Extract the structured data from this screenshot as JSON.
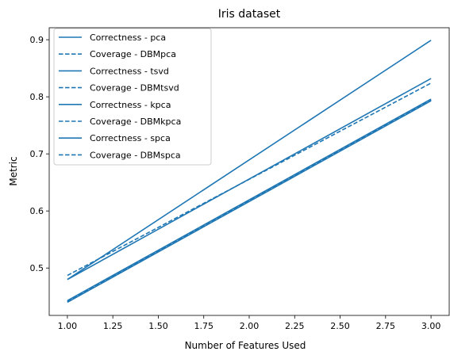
{
  "chart_data": {
    "type": "line",
    "title": "Iris dataset",
    "xlabel": "Number of Features Used",
    "ylabel": "Metric",
    "xlim": [
      0.9,
      3.1
    ],
    "ylim": [
      0.417,
      0.921
    ],
    "xticks": [
      1.0,
      1.25,
      1.5,
      1.75,
      2.0,
      2.25,
      2.5,
      2.75,
      3.0
    ],
    "xtick_labels": [
      "1.00",
      "1.25",
      "1.50",
      "1.75",
      "2.00",
      "2.25",
      "2.50",
      "2.75",
      "3.00"
    ],
    "yticks": [
      0.5,
      0.6,
      0.7,
      0.8,
      0.9
    ],
    "ytick_labels": [
      "0.5",
      "0.6",
      "0.7",
      "0.8",
      "0.9"
    ],
    "grid": false,
    "legend_position": "upper-left",
    "line_color": "#1f77b4",
    "x": [
      1,
      3
    ],
    "series": [
      {
        "name": "Correctness - pca",
        "style": "solid",
        "values": [
          0.48,
          0.899
        ]
      },
      {
        "name": "Coverage - DBMpca",
        "style": "dashed",
        "values": [
          0.441,
          0.794
        ]
      },
      {
        "name": "Correctness - tsvd",
        "style": "solid",
        "values": [
          0.48,
          0.832
        ]
      },
      {
        "name": "Coverage - DBMtsvd",
        "style": "dashed",
        "values": [
          0.487,
          0.824
        ]
      },
      {
        "name": "Correctness - kpca",
        "style": "solid",
        "values": [
          0.44,
          0.793
        ]
      },
      {
        "name": "Coverage - DBMkpca",
        "style": "dashed",
        "values": [
          0.442,
          0.795
        ]
      },
      {
        "name": "Correctness - spca",
        "style": "solid",
        "values": [
          0.443,
          0.796
        ]
      },
      {
        "name": "Coverage - DBMspca",
        "style": "dashed",
        "values": [
          0.441,
          0.794
        ]
      }
    ]
  }
}
